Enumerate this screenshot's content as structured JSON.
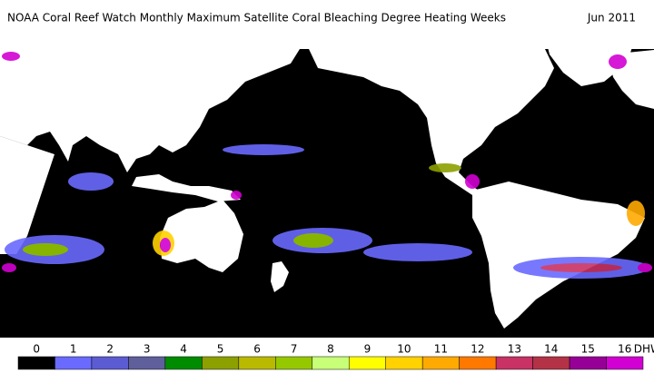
{
  "header": {
    "title": "NOAA Coral Reef Watch Monthly Maximum Satellite Coral Bleaching Degree Heating Weeks",
    "date": "Jun 2011"
  },
  "legend": {
    "ticks": [
      0,
      1,
      2,
      3,
      4,
      5,
      6,
      7,
      8,
      9,
      10,
      11,
      12,
      13,
      14,
      15,
      16
    ],
    "unit": "DHW",
    "colors": [
      "#000000",
      "#6a6aff",
      "#5c5cd2",
      "#5f5f9c",
      "#008c00",
      "#8ca000",
      "#b9b900",
      "#96c800",
      "#c8ff78",
      "#ffff00",
      "#ffd200",
      "#ffaa00",
      "#ff7800",
      "#c83264",
      "#b43246",
      "#960096",
      "#d200d2"
    ]
  }
}
